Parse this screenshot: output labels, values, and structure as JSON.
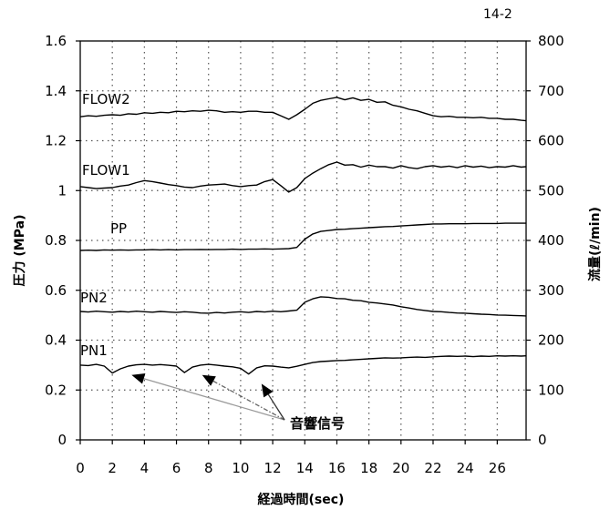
{
  "page_label": "14-2",
  "chart_data": {
    "type": "line",
    "xlabel": "経過時間(sec)",
    "ylabel": "圧力 (MPa)",
    "y2label": "流量(ℓ/min)",
    "xlim": [
      0,
      27.8
    ],
    "ylim": [
      0,
      1.6
    ],
    "y2lim": [
      0,
      800
    ],
    "xticks": [
      0,
      2,
      4,
      6,
      8,
      10,
      12,
      14,
      16,
      18,
      20,
      22,
      24,
      26
    ],
    "yticks": [
      0,
      0.2,
      0.4,
      0.6,
      0.8,
      1,
      1.2,
      1.4,
      1.6
    ],
    "y2ticks": [
      0,
      100,
      200,
      300,
      400,
      500,
      600,
      700,
      800
    ],
    "grid": true,
    "colors": {
      "series": "#000000",
      "grid": "#555555",
      "frame": "#000000"
    },
    "x": [
      0,
      0.5,
      1,
      1.5,
      2,
      2.5,
      3,
      3.5,
      4,
      4.5,
      5,
      5.5,
      6,
      6.5,
      7,
      7.5,
      8,
      8.5,
      9,
      9.5,
      10,
      10.5,
      11,
      11.5,
      12,
      12.5,
      13,
      13.5,
      14,
      14.5,
      15,
      15.5,
      16,
      16.5,
      17,
      17.5,
      18,
      18.5,
      19,
      19.5,
      20,
      20.5,
      21,
      21.5,
      22,
      22.5,
      23,
      23.5,
      24,
      24.5,
      25,
      25.5,
      26,
      26.5,
      27,
      27.5,
      27.8
    ],
    "series": [
      {
        "name": "FLOW2",
        "axis": "right",
        "values": [
          648,
          650,
          649,
          651,
          652,
          651,
          654,
          653,
          656,
          655,
          657,
          656,
          659,
          658,
          660,
          659,
          661,
          660,
          657,
          658,
          657,
          659,
          659,
          657,
          657,
          650,
          643,
          652,
          663,
          675,
          681,
          684,
          687,
          682,
          686,
          681,
          683,
          677,
          678,
          671,
          668,
          663,
          660,
          655,
          650,
          648,
          649,
          647,
          647,
          646,
          647,
          645,
          645,
          643,
          643,
          641,
          640
        ]
      },
      {
        "name": "FLOW1",
        "axis": "right",
        "values": [
          508,
          506,
          504,
          505,
          506,
          509,
          511,
          516,
          520,
          518,
          515,
          512,
          510,
          507,
          506,
          509,
          511,
          512,
          513,
          510,
          508,
          510,
          511,
          518,
          522,
          510,
          497,
          506,
          524,
          535,
          544,
          552,
          557,
          551,
          552,
          547,
          551,
          548,
          548,
          545,
          550,
          546,
          544,
          548,
          550,
          547,
          549,
          546,
          550,
          547,
          549,
          546,
          548,
          547,
          550,
          547,
          548
        ]
      },
      {
        "name": "PP",
        "axis": "left",
        "values": [
          0.76,
          0.761,
          0.76,
          0.762,
          0.761,
          0.762,
          0.761,
          0.762,
          0.762,
          0.763,
          0.762,
          0.763,
          0.762,
          0.763,
          0.763,
          0.764,
          0.763,
          0.764,
          0.764,
          0.765,
          0.764,
          0.765,
          0.765,
          0.766,
          0.765,
          0.766,
          0.767,
          0.772,
          0.805,
          0.826,
          0.836,
          0.84,
          0.844,
          0.845,
          0.847,
          0.849,
          0.851,
          0.853,
          0.855,
          0.856,
          0.858,
          0.86,
          0.862,
          0.864,
          0.866,
          0.866,
          0.867,
          0.867,
          0.867,
          0.868,
          0.868,
          0.868,
          0.868,
          0.869,
          0.869,
          0.869,
          0.869
        ]
      },
      {
        "name": "PN2",
        "axis": "left",
        "values": [
          0.515,
          0.513,
          0.516,
          0.514,
          0.512,
          0.515,
          0.513,
          0.516,
          0.514,
          0.512,
          0.515,
          0.513,
          0.511,
          0.514,
          0.512,
          0.509,
          0.508,
          0.511,
          0.509,
          0.512,
          0.514,
          0.511,
          0.515,
          0.513,
          0.516,
          0.514,
          0.517,
          0.52,
          0.552,
          0.566,
          0.574,
          0.572,
          0.567,
          0.566,
          0.56,
          0.558,
          0.552,
          0.549,
          0.545,
          0.541,
          0.534,
          0.529,
          0.523,
          0.519,
          0.515,
          0.514,
          0.511,
          0.509,
          0.508,
          0.506,
          0.504,
          0.503,
          0.501,
          0.5,
          0.499,
          0.498,
          0.497
        ]
      },
      {
        "name": "PN1",
        "axis": "left",
        "values": [
          0.3,
          0.298,
          0.303,
          0.296,
          0.268,
          0.285,
          0.296,
          0.301,
          0.303,
          0.3,
          0.302,
          0.299,
          0.296,
          0.27,
          0.292,
          0.3,
          0.303,
          0.3,
          0.296,
          0.293,
          0.287,
          0.264,
          0.289,
          0.297,
          0.296,
          0.292,
          0.289,
          0.295,
          0.303,
          0.31,
          0.314,
          0.316,
          0.318,
          0.319,
          0.321,
          0.323,
          0.325,
          0.327,
          0.329,
          0.328,
          0.329,
          0.331,
          0.332,
          0.331,
          0.333,
          0.335,
          0.336,
          0.335,
          0.336,
          0.334,
          0.336,
          0.335,
          0.337,
          0.336,
          0.337,
          0.336,
          0.337
        ]
      }
    ],
    "annotations": [
      {
        "text": "音響信号",
        "points": [
          [
            3.2,
            0.26
          ],
          [
            7.6,
            0.26
          ],
          [
            11.3,
            0.225
          ]
        ]
      }
    ]
  }
}
